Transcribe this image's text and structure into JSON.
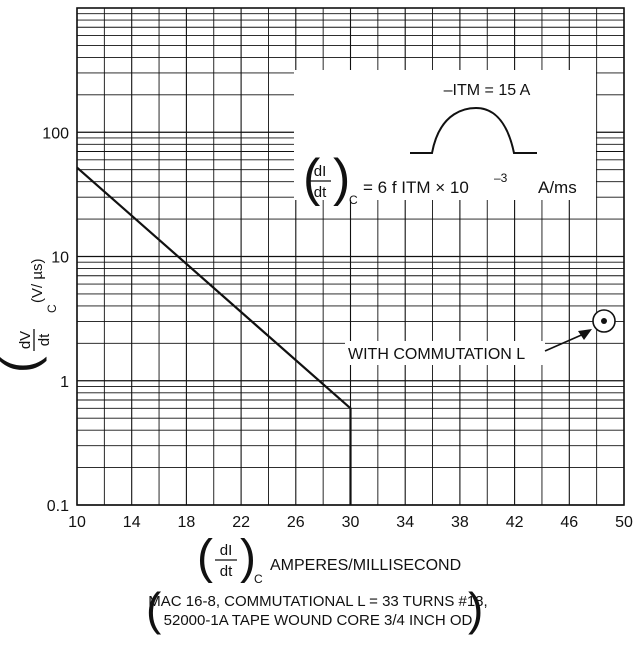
{
  "chart_data": {
    "type": "line",
    "x_scale": "linear",
    "y_scale": "log",
    "xlim": [
      10,
      50
    ],
    "ylim": [
      0.1,
      1000
    ],
    "x_ticks": [
      "10",
      "14",
      "18",
      "22",
      "26",
      "30",
      "34",
      "38",
      "42",
      "46",
      "50"
    ],
    "y_ticks": [
      "0.1",
      "1",
      "10",
      "100"
    ],
    "grid": true,
    "series": [
      {
        "points": [
          [
            10,
            52
          ],
          [
            30,
            0.6
          ],
          [
            30,
            0.1
          ]
        ]
      }
    ],
    "xlabel_prefix": "dI",
    "xlabel_prefix_den": "dt",
    "xlabel_sub": "C",
    "xlabel": "AMPERES/MILLISECOND",
    "ylabel_num": "dV",
    "ylabel_den": "dt",
    "ylabel_sub": "C",
    "ylabel_units": "(V/ µs)",
    "annotations": {
      "itm": "–ITM = 15 A",
      "formula_lhs_num": "dI",
      "formula_lhs_den": "dt",
      "formula_lhs_sub": "C",
      "formula_rhs": "= 6 f ITM × 10",
      "formula_exp": "–3",
      "formula_unit": "A/ms",
      "commutation": "WITH COMMUTATION L"
    },
    "footnote_line1": "MAC 16-8, COMMUTATIONAL L = 33 TURNS #18,",
    "footnote_line2": "52000-1A TAPE WOUND CORE 3/4 INCH OD"
  }
}
